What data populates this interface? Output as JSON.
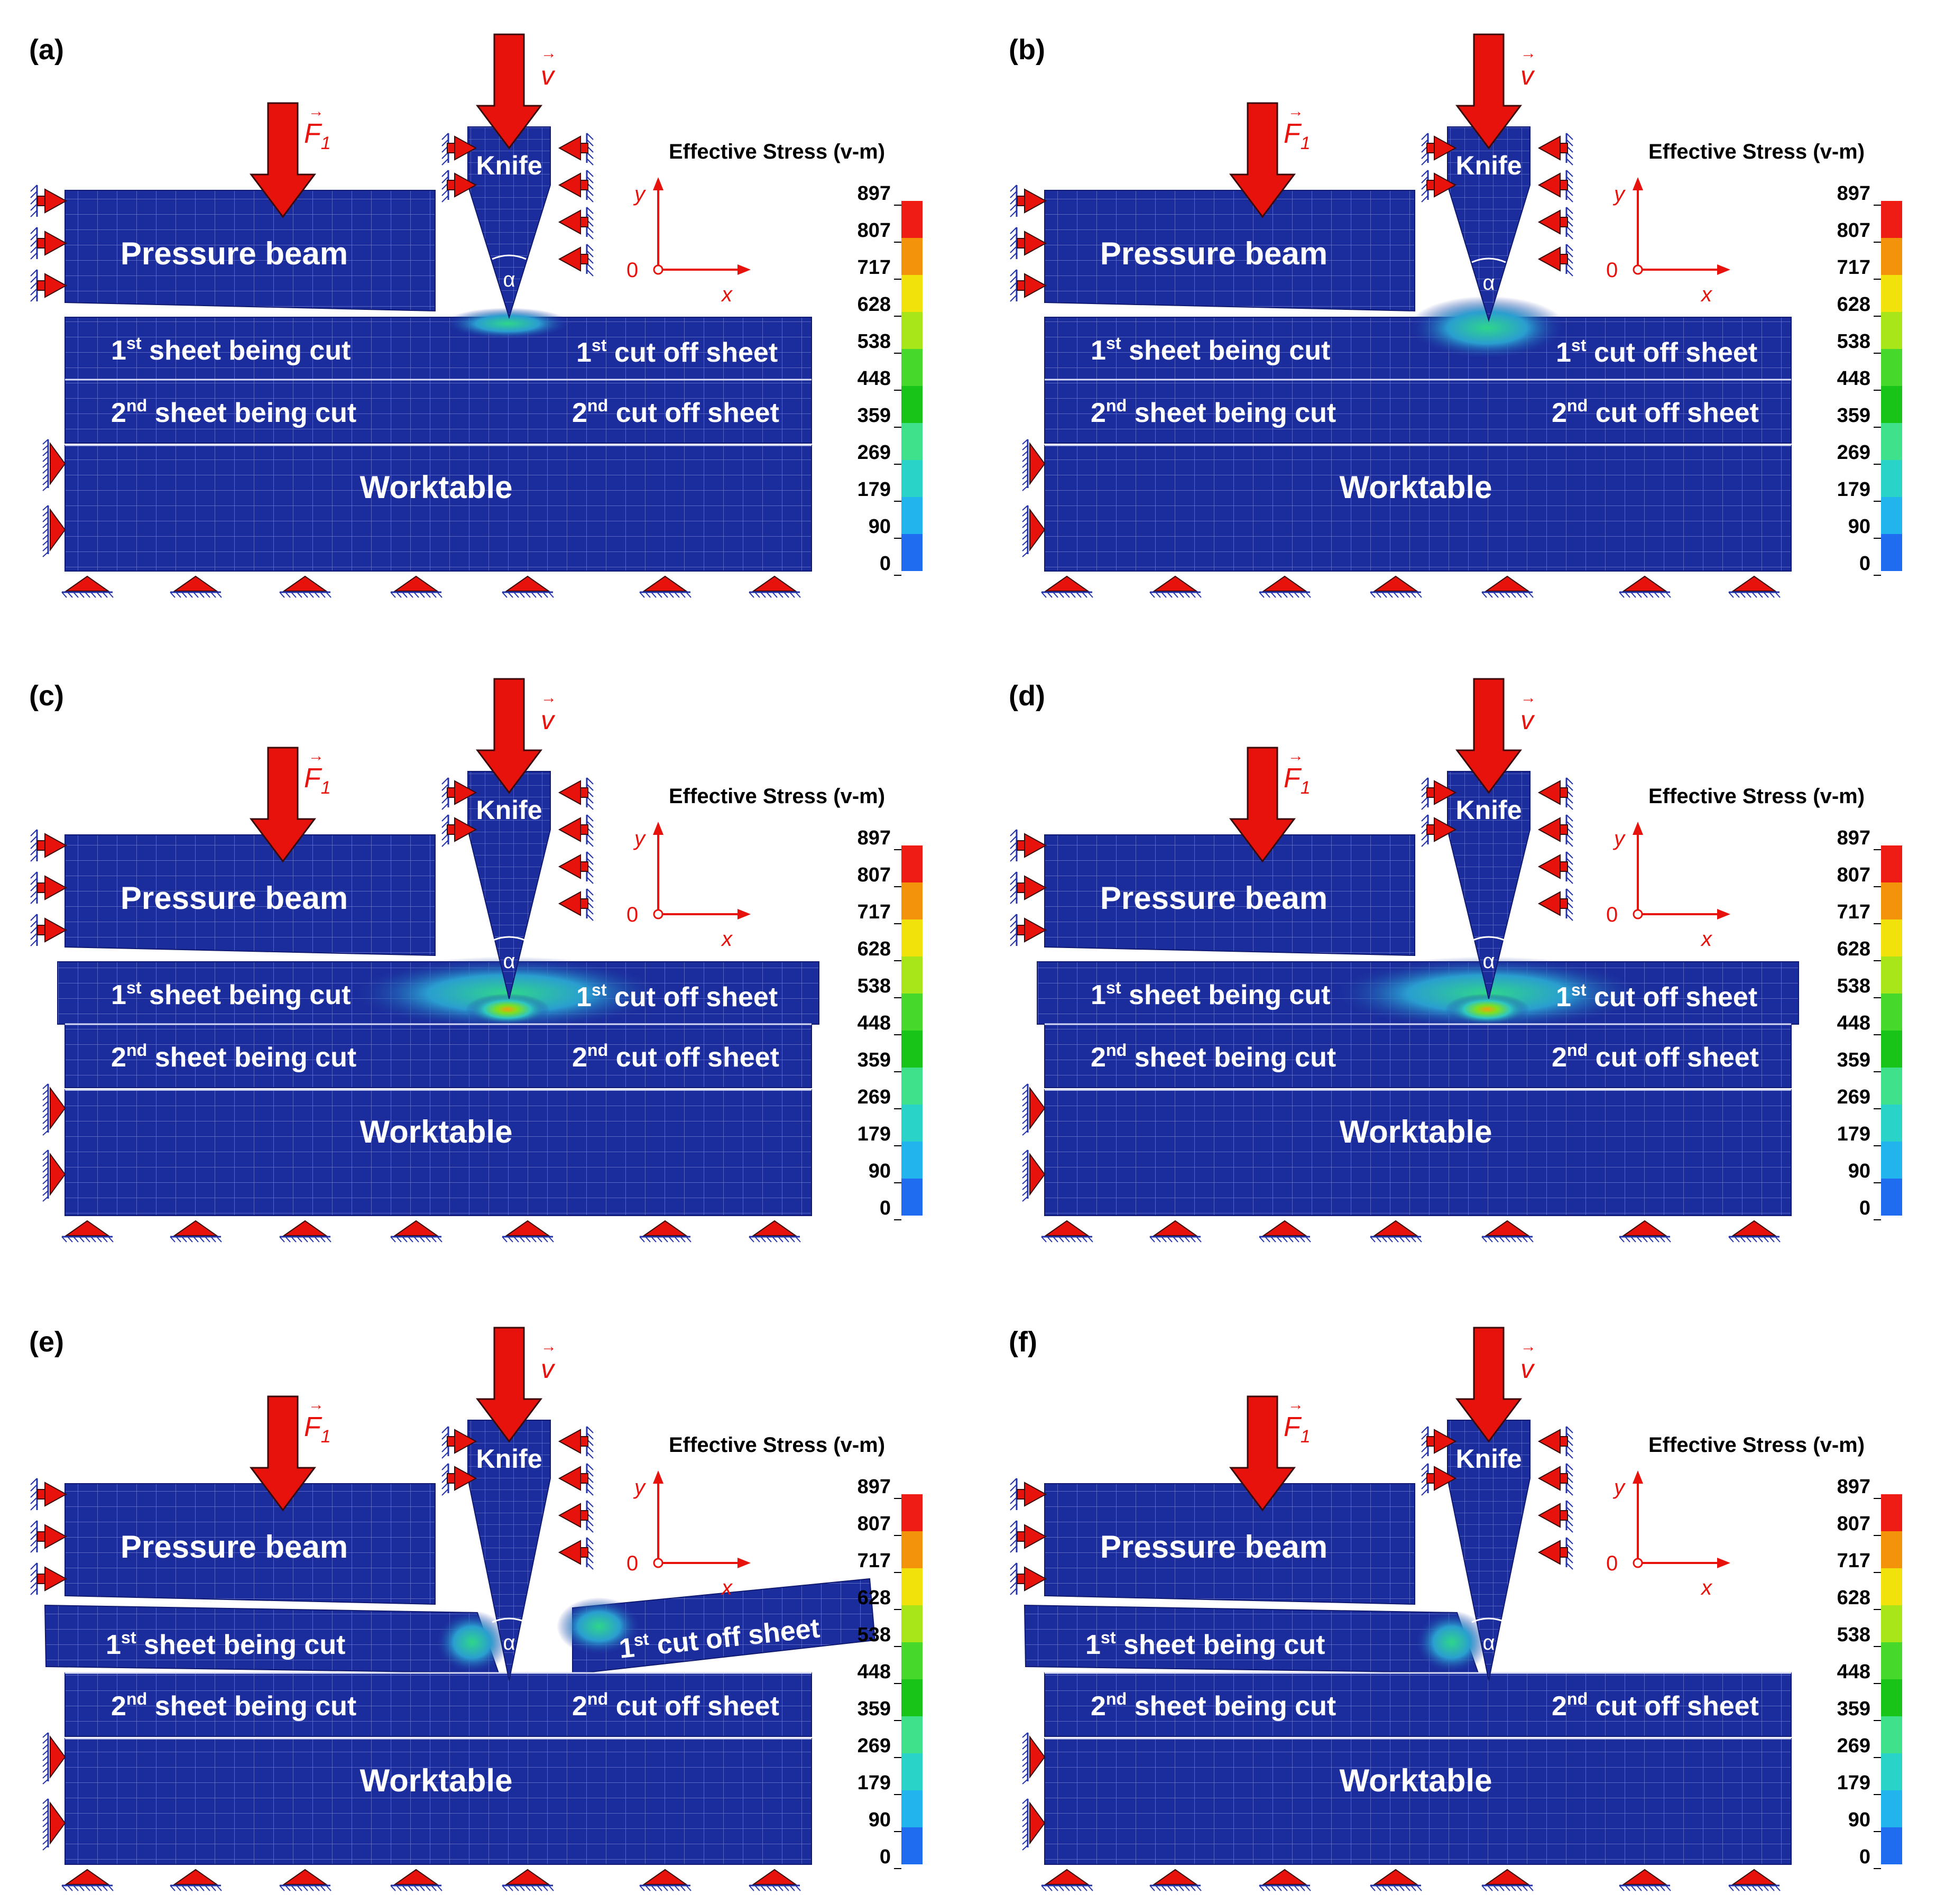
{
  "colors": {
    "mesh": "#1b2c9c",
    "mesh_line": "#7d89d6",
    "arrow": "#e8120c",
    "hatch": "#2233aa",
    "axis": "#e8120c",
    "scale": [
      "#0a14e0",
      "#1f6cf0",
      "#22b4ec",
      "#2ad3c8",
      "#3fe28a",
      "#18c418",
      "#46d82a",
      "#a8e61a",
      "#f2e20c",
      "#f3930c",
      "#ee1c14"
    ]
  },
  "labels": {
    "pressure_beam": "Pressure beam",
    "knife": "Knife",
    "sheet1_cut": "sheet being cut",
    "sheet1_off": "cut off sheet",
    "sheet2_cut": "sheet being cut",
    "sheet2_off": "cut off sheet",
    "ord1": "1",
    "ord1_sup": "st",
    "ord2": "2",
    "ord2_sup": "nd",
    "worktable": "Worktable",
    "force": "F",
    "force_sub": "1",
    "velocity": "v",
    "alpha": "α",
    "axis_x": "x",
    "axis_y": "y",
    "axis_origin": "0"
  },
  "legend": {
    "title": "Effective Stress (v-m)",
    "ticks": [
      "897",
      "807",
      "717",
      "628",
      "538",
      "448",
      "359",
      "269",
      "179",
      "90",
      "0"
    ]
  },
  "panels": [
    {
      "id": "(a)",
      "stage": "a"
    },
    {
      "id": "(b)",
      "stage": "b"
    },
    {
      "id": "(c)",
      "stage": "c"
    },
    {
      "id": "(d)",
      "stage": "d"
    },
    {
      "id": "(e)",
      "stage": "e"
    },
    {
      "id": "(f)",
      "stage": "f"
    }
  ]
}
